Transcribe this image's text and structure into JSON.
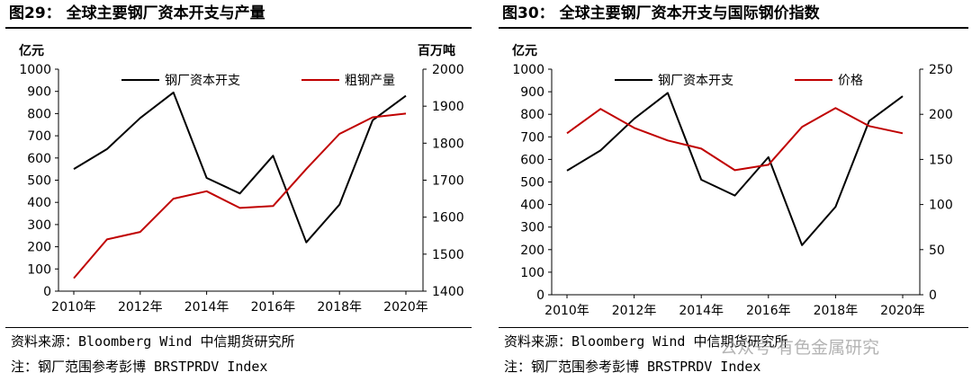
{
  "figures": [
    {
      "title": "图29： 全球主要钢厂资本开支与产量",
      "source": "资料来源：Bloomberg Wind 中信期货研究所",
      "note": "注：钢厂范围参考彭博 BRSTPRDV Index"
    },
    {
      "title": "图30： 全球主要钢厂资本开支与国际钢价指数",
      "source": "资料来源：Bloomberg Wind 中信期货研究所",
      "note": "注：钢厂范围参考彭博 BRSTPRDV Index"
    }
  ],
  "watermark": "公众号·有色金属研究",
  "colors": {
    "capex": "#000000",
    "secondary": "#c00000",
    "axis": "#000000"
  },
  "chart_data": [
    {
      "type": "line",
      "x": [
        2010,
        2011,
        2012,
        2013,
        2014,
        2015,
        2016,
        2017,
        2018,
        2019,
        2020
      ],
      "x_ticks": [
        "2010年",
        "2012年",
        "2014年",
        "2016年",
        "2018年",
        "2020年"
      ],
      "y_left_label": "亿元",
      "y_right_label": "百万吨",
      "ylim_left": [
        0,
        1000
      ],
      "ylim_right": [
        1400,
        2000
      ],
      "y_left_ticks": [
        0,
        100,
        200,
        300,
        400,
        500,
        600,
        700,
        800,
        900,
        1000
      ],
      "y_right_ticks": [
        1400,
        1500,
        1600,
        1700,
        1800,
        1900,
        2000
      ],
      "grid": false,
      "legend_position": "top",
      "series": [
        {
          "name": "钢厂资本开支",
          "axis": "left",
          "color": "#000000",
          "values": [
            550,
            640,
            780,
            895,
            510,
            440,
            610,
            220,
            390,
            770,
            880
          ]
        },
        {
          "name": "粗钢产量",
          "axis": "right",
          "color": "#c00000",
          "values": [
            1435,
            1540,
            1560,
            1650,
            1670,
            1625,
            1630,
            1730,
            1825,
            1870,
            1880
          ]
        }
      ]
    },
    {
      "type": "line",
      "x": [
        2010,
        2011,
        2012,
        2013,
        2014,
        2015,
        2016,
        2017,
        2018,
        2019,
        2020
      ],
      "x_ticks": [
        "2010年",
        "2012年",
        "2014年",
        "2016年",
        "2018年",
        "2020年"
      ],
      "y_left_label": "亿元",
      "y_right_label": "",
      "ylim_left": [
        0,
        1000
      ],
      "ylim_right": [
        0,
        250
      ],
      "y_left_ticks": [
        0,
        100,
        200,
        300,
        400,
        500,
        600,
        700,
        800,
        900,
        1000
      ],
      "y_right_ticks": [
        0,
        50,
        100,
        150,
        200,
        250
      ],
      "grid": false,
      "legend_position": "top",
      "series": [
        {
          "name": "钢厂资本开支",
          "axis": "left",
          "color": "#000000",
          "values": [
            550,
            640,
            780,
            895,
            510,
            440,
            610,
            220,
            390,
            770,
            880
          ]
        },
        {
          "name": "价格",
          "axis": "right",
          "color": "#c00000",
          "values": [
            179,
            206,
            185,
            171,
            162,
            138,
            144,
            186,
            207,
            187,
            179
          ]
        }
      ]
    }
  ]
}
